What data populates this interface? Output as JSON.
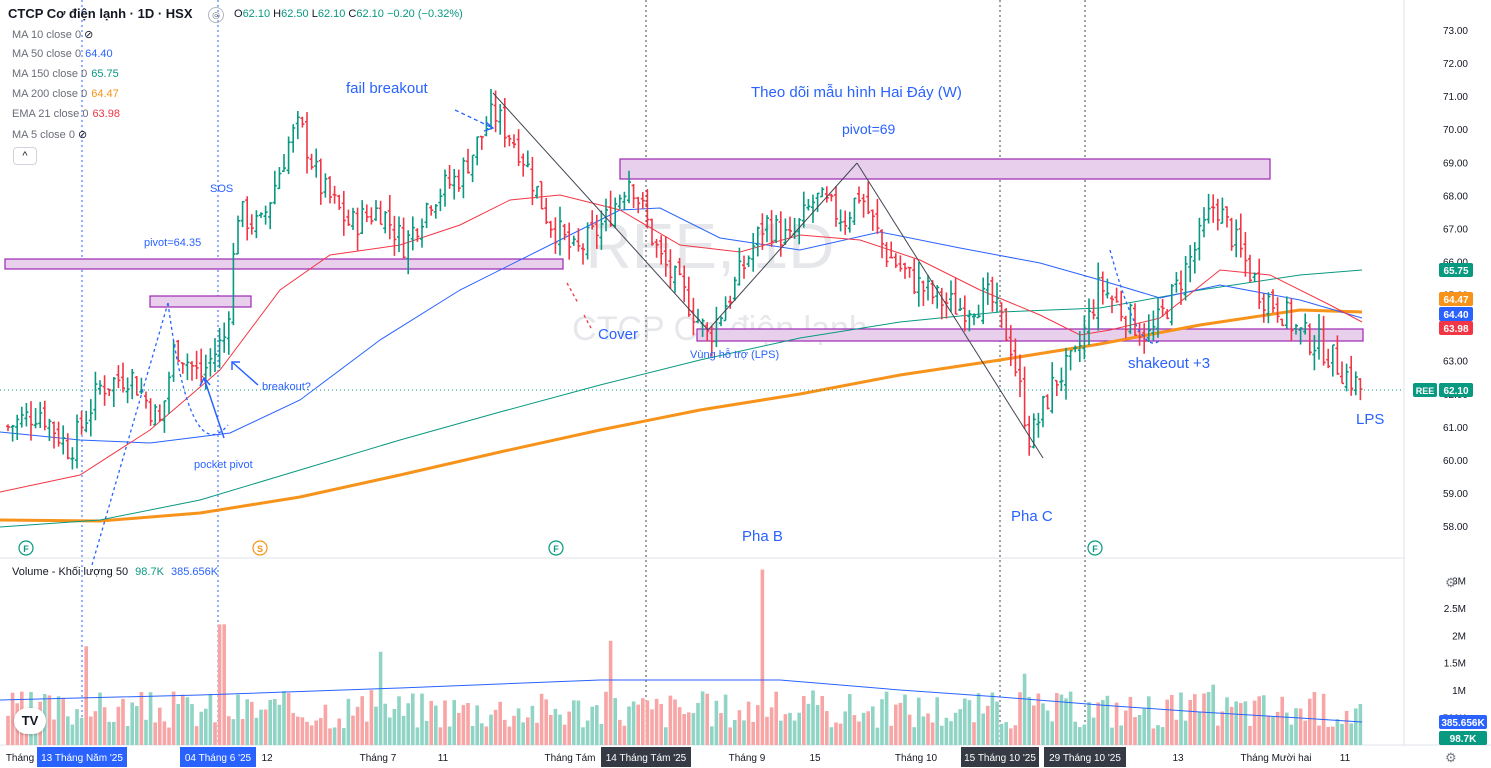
{
  "header": {
    "title": "CTCP Cơ điện lạnh · 1D · HSX",
    "ohlc": {
      "o_label": "O",
      "o": "62.10",
      "h_label": "H",
      "h": "62.50",
      "l_label": "L",
      "l": "62.10",
      "c_label": "C",
      "c": "62.10",
      "change": "−0.20 (−0.32%)"
    }
  },
  "indicators": [
    {
      "label": "MA 10 close 0",
      "value": "",
      "hidden": true,
      "color": "#787b86"
    },
    {
      "label": "MA 50 close 0",
      "value": "64.40",
      "color": "#2962ff"
    },
    {
      "label": "MA 150 close 0",
      "value": "65.75",
      "color": "#089981"
    },
    {
      "label": "MA 200 close 0",
      "value": "64.47",
      "color": "#f7931a"
    },
    {
      "label": "EMA 21 close 0",
      "value": "63.98",
      "color": "#f23645"
    },
    {
      "label": "MA 5 close 0",
      "value": "",
      "hidden": true,
      "color": "#787b86"
    }
  ],
  "collapse_button": "^",
  "watermark": {
    "symbol": "REE, 1D",
    "name": "CTCP Cơ điện lạnh"
  },
  "volume_legend": {
    "label": "Volume - Khối lượng 50",
    "v1": "98.7K",
    "v2": "385.656K"
  },
  "colors": {
    "up": "#089981",
    "down": "#f23645",
    "ma50": "#2962ff",
    "ma150": "#089981",
    "ma200": "#f7931a",
    "ema21": "#f23645",
    "zone_fill": "#e8d0ec",
    "zone_stroke": "#9c27b0",
    "annotation": "#2962ff",
    "vol_up": "#8fd4c4",
    "vol_down": "#f8a5a5"
  },
  "annotations": {
    "fail_breakout": "fail breakout",
    "theo_doi": "Theo dõi mẫu hình Hai Đáy (W)",
    "pivot69": "pivot=69",
    "sos": "SOS",
    "pivot6435": "pivot=64.35",
    "cover": "Cover",
    "vung_ho_tro": "Vùng hỗ trợ (LPS)",
    "breakout": "breakout?",
    "pocket_pivot": "pocket pivot",
    "shakeout": "shakeout +3",
    "lps": "LPS",
    "pha_b": "Pha B",
    "pha_c": "Pha C"
  },
  "event_markers": [
    {
      "label": "F",
      "color": "#089981"
    },
    {
      "label": "S",
      "color": "#f7931a"
    },
    {
      "label": "F",
      "color": "#089981"
    },
    {
      "label": "F",
      "color": "#089981"
    }
  ],
  "price_axis": {
    "ticks": [
      "73.00",
      "72.00",
      "71.00",
      "70.00",
      "69.00",
      "68.00",
      "67.00",
      "66.00",
      "65.00",
      "64.00",
      "63.00",
      "62.00",
      "61.00",
      "60.00",
      "59.00",
      "58.00"
    ],
    "badges": [
      {
        "label": "",
        "value": "65.75",
        "color": "#089981"
      },
      {
        "label": "",
        "value": "64.47",
        "color": "#f7931a"
      },
      {
        "label": "",
        "value": "64.40",
        "color": "#2962ff"
      },
      {
        "label": "",
        "value": "63.98",
        "color": "#f23645"
      },
      {
        "label": "REE",
        "value": "62.10",
        "color": "#089981"
      }
    ]
  },
  "volume_axis": {
    "ticks": [
      "3M",
      "2.5M",
      "2M",
      "1.5M",
      "1M",
      "500K"
    ],
    "badges": [
      {
        "value": "385.656K",
        "color": "#2962ff"
      },
      {
        "value": "98.7K",
        "color": "#089981"
      }
    ]
  },
  "time_axis": {
    "labels": [
      "Tháng",
      "Tháng 7",
      "11",
      "Tháng Tám",
      "Tháng 9",
      "15",
      "Tháng 10",
      "13",
      "Tháng Mười hai",
      "11",
      "12"
    ],
    "highlighted": [
      "13 Tháng Năm '25",
      "04 Tháng 6 '25",
      "14 Tháng Tám '25",
      "15 Tháng 10 '25",
      "29 Tháng 10 '25"
    ]
  },
  "chart_data": {
    "type": "candlestick",
    "symbol": "REE",
    "timeframe": "1D",
    "ylim": [
      57.5,
      73.4
    ],
    "last_price": 62.1,
    "candles": [],
    "ma50_last": 64.4,
    "ma150_last": 65.75,
    "ma200_last": 64.47,
    "ema21_last": 63.98,
    "pivots": [
      64.35,
      69
    ],
    "volume_last": "98.7K",
    "volume_ma50": "385.656K"
  }
}
